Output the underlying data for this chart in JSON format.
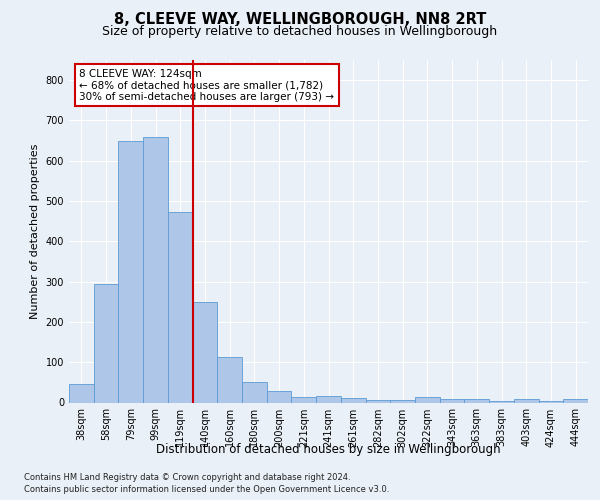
{
  "title1": "8, CLEEVE WAY, WELLINGBOROUGH, NN8 2RT",
  "title2": "Size of property relative to detached houses in Wellingborough",
  "xlabel": "Distribution of detached houses by size in Wellingborough",
  "ylabel": "Number of detached properties",
  "footnote1": "Contains HM Land Registry data © Crown copyright and database right 2024.",
  "footnote2": "Contains public sector information licensed under the Open Government Licence v3.0.",
  "categories": [
    "38sqm",
    "58sqm",
    "79sqm",
    "99sqm",
    "119sqm",
    "140sqm",
    "160sqm",
    "180sqm",
    "200sqm",
    "221sqm",
    "241sqm",
    "261sqm",
    "282sqm",
    "302sqm",
    "322sqm",
    "343sqm",
    "363sqm",
    "383sqm",
    "403sqm",
    "424sqm",
    "444sqm"
  ],
  "values": [
    45,
    293,
    648,
    660,
    473,
    250,
    113,
    50,
    28,
    13,
    15,
    10,
    5,
    5,
    13,
    8,
    8,
    3,
    8,
    3,
    8
  ],
  "bar_color": "#aec6e8",
  "bar_edge_color": "#5b9bd5",
  "vline_color": "#cc0000",
  "annotation_text": "8 CLEEVE WAY: 124sqm\n← 68% of detached houses are smaller (1,782)\n30% of semi-detached houses are larger (793) →",
  "annotation_box_color": "#ffffff",
  "annotation_box_edge": "#cc0000",
  "ylim": [
    0,
    850
  ],
  "yticks": [
    0,
    100,
    200,
    300,
    400,
    500,
    600,
    700,
    800
  ],
  "bg_color": "#eaf0f7",
  "plot_bg_color": "#eaf0f7",
  "grid_color": "#ffffff",
  "title1_fontsize": 10.5,
  "title2_fontsize": 9,
  "xlabel_fontsize": 8.5,
  "ylabel_fontsize": 8,
  "tick_fontsize": 7,
  "annot_fontsize": 7.5,
  "footnote_fontsize": 6
}
